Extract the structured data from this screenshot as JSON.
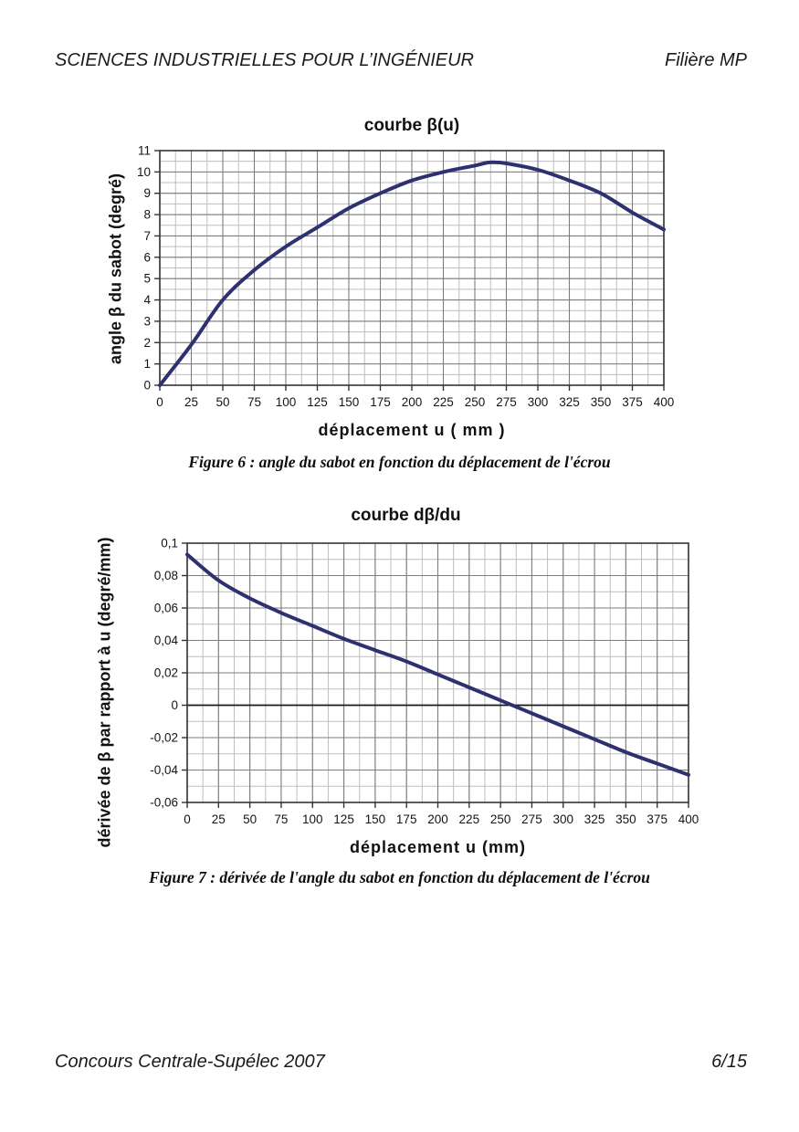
{
  "header": {
    "left": "SCIENCES INDUSTRIELLES POUR L’INGÉNIEUR",
    "right": "Filière MP"
  },
  "footer": {
    "left": "Concours Centrale-Supélec 2007",
    "right": "6/15"
  },
  "figures": {
    "fig6_caption": "Figure 6 : angle du sabot en fonction du déplacement de l'écrou",
    "fig7_caption": "Figure 7 : dérivée de l'angle du sabot en fonction du déplacement de l'écrou"
  },
  "colors": {
    "curve": "#2e3170",
    "grid_major": "#7d7d7d",
    "grid_minor": "#bdbdbd",
    "axis_border": "#333333",
    "zero_line": "#1a1a1a"
  },
  "chart_data": [
    {
      "type": "line",
      "title": "courbe β(u)",
      "xlabel": "déplacement  u ( mm )",
      "ylabel": "angle β du sabot (degré)",
      "xlim": [
        0,
        400
      ],
      "ylim": [
        0,
        11
      ],
      "x_minor_step": 12.5,
      "y_minor_step": 0.5,
      "grid": true,
      "legend": null,
      "x_ticks": [
        0,
        25,
        50,
        75,
        100,
        125,
        150,
        175,
        200,
        225,
        250,
        275,
        300,
        325,
        350,
        375,
        400
      ],
      "x_tick_labels": [
        "0",
        "25",
        "50",
        "75",
        "100",
        "125",
        "150",
        "175",
        "200",
        "225",
        "250",
        "275",
        "300",
        "325",
        "350",
        "375",
        "400"
      ],
      "y_ticks": [
        0,
        1,
        2,
        3,
        4,
        5,
        6,
        7,
        8,
        9,
        10,
        11
      ],
      "y_tick_labels": [
        "0",
        "1",
        "2",
        "3",
        "4",
        "5",
        "6",
        "7",
        "8",
        "9",
        "10",
        "11"
      ],
      "x": [
        0,
        25,
        50,
        75,
        100,
        125,
        150,
        175,
        200,
        225,
        250,
        275,
        300,
        325,
        350,
        375,
        400
      ],
      "y": [
        0,
        1.9,
        4.0,
        5.4,
        6.5,
        7.4,
        8.3,
        9.0,
        9.6,
        10.0,
        10.3,
        10.4,
        10.1,
        9.6,
        9.0,
        8.1,
        7.3
      ],
      "peak": {
        "x": 262,
        "y": 10.45
      }
    },
    {
      "type": "line",
      "title": "courbe dβ/du",
      "xlabel": "déplacement u (mm)",
      "ylabel": "dérivée de β par rapport à u (degré/mm)",
      "xlim": [
        0,
        400
      ],
      "ylim": [
        -0.06,
        0.1
      ],
      "x_minor_step": 12.5,
      "y_minor_step": 0.01,
      "grid": true,
      "legend": null,
      "zero_line": true,
      "x_ticks": [
        0,
        25,
        50,
        75,
        100,
        125,
        150,
        175,
        200,
        225,
        250,
        275,
        300,
        325,
        350,
        375,
        400
      ],
      "x_tick_labels": [
        "0",
        "25",
        "50",
        "75",
        "100",
        "125",
        "150",
        "175",
        "200",
        "225",
        "250",
        "275",
        "300",
        "325",
        "350",
        "375",
        "400"
      ],
      "y_ticks": [
        0.1,
        0.08,
        0.06,
        0.04,
        0.02,
        0,
        -0.02,
        -0.04,
        -0.06
      ],
      "y_tick_labels": [
        "0,1",
        "0,08",
        "0,06",
        "0,04",
        "0,02",
        "0",
        "-0,02",
        "-0,04",
        "-0,06"
      ],
      "x": [
        0,
        25,
        50,
        75,
        100,
        125,
        150,
        175,
        200,
        225,
        250,
        275,
        300,
        325,
        350,
        375,
        400
      ],
      "y": [
        0.093,
        0.077,
        0.066,
        0.057,
        0.049,
        0.041,
        0.034,
        0.027,
        0.019,
        0.011,
        0.003,
        -0.005,
        -0.013,
        -0.021,
        -0.029,
        -0.036,
        -0.043
      ]
    }
  ]
}
